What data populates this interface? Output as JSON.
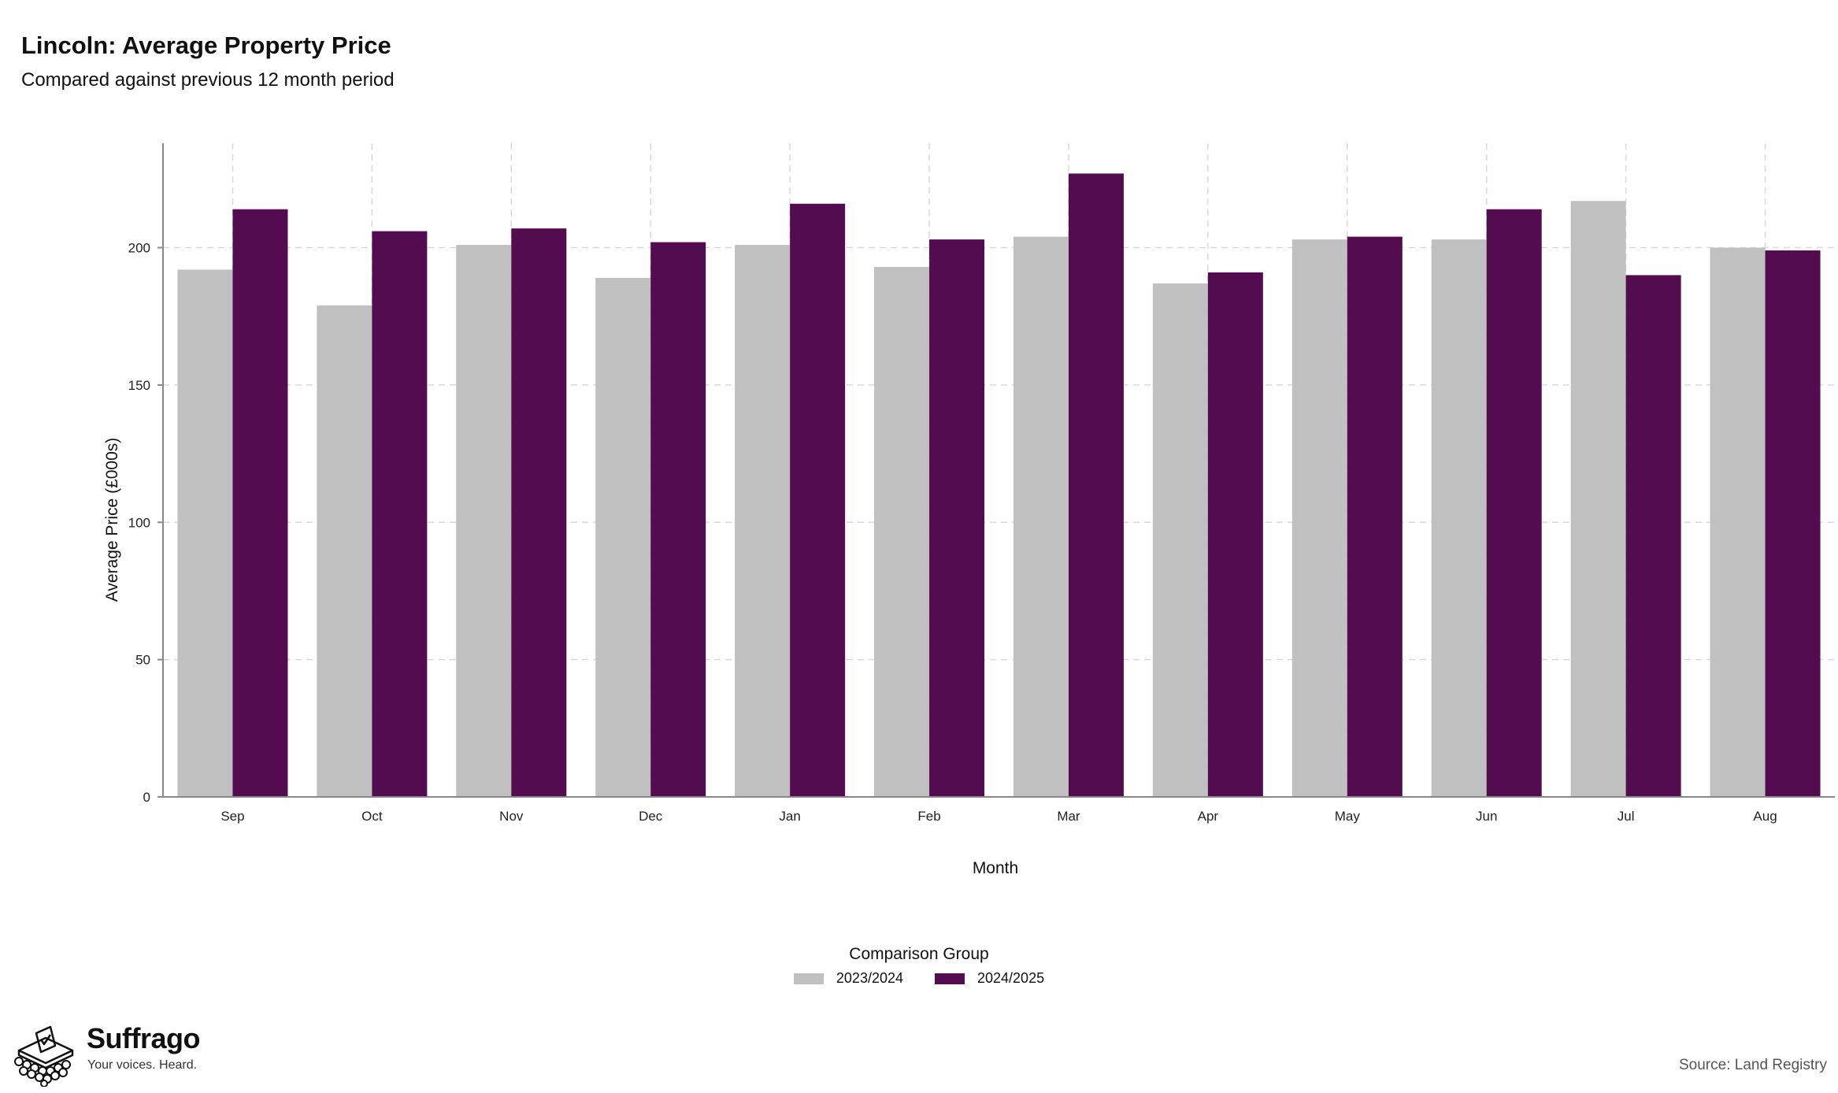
{
  "title": "Lincoln: Average Property Price",
  "subtitle": "Compared against previous 12 month period",
  "legend": {
    "title": "Comparison Group",
    "items": [
      {
        "label": "2023/2024",
        "color": "#c0c0c0"
      },
      {
        "label": "2024/2025",
        "color": "#540c50"
      }
    ]
  },
  "branding": {
    "name": "Suffrago",
    "tagline": "Your voices. Heard.",
    "logo_icon": "ballot-box-icon"
  },
  "source": "Source: Land Registry",
  "chart_data": {
    "type": "bar",
    "xlabel": "Month",
    "ylabel": "Average Price (£000s)",
    "ylim": [
      0,
      238
    ],
    "yticks": [
      0,
      50,
      100,
      150,
      200
    ],
    "grid": true,
    "legend_position": "bottom",
    "categories": [
      "Sep",
      "Oct",
      "Nov",
      "Dec",
      "Jan",
      "Feb",
      "Mar",
      "Apr",
      "May",
      "Jun",
      "Jul",
      "Aug"
    ],
    "series": [
      {
        "name": "2023/2024",
        "color": "#c0c0c0",
        "values": [
          192,
          179,
          201,
          189,
          201,
          193,
          204,
          187,
          203,
          203,
          217,
          200
        ]
      },
      {
        "name": "2024/2025",
        "color": "#540c50",
        "values": [
          214,
          206,
          207,
          202,
          216,
          203,
          227,
          191,
          204,
          214,
          190,
          199
        ]
      }
    ]
  }
}
